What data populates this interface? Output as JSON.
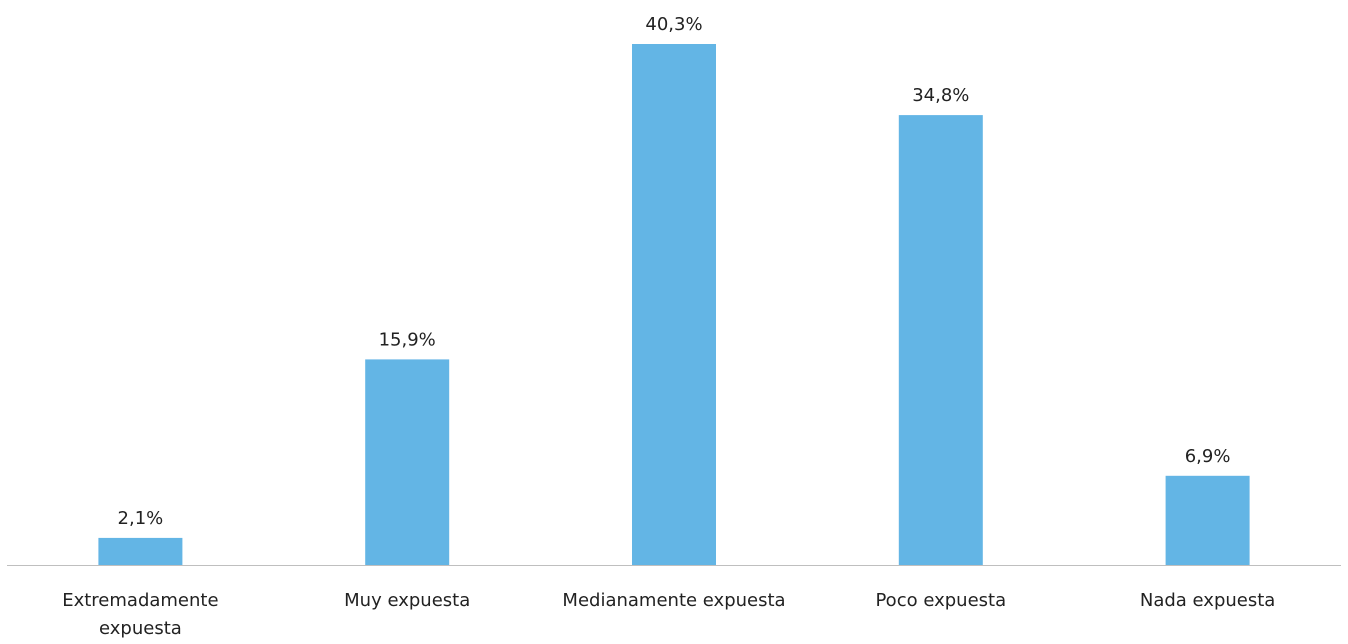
{
  "chart_data": {
    "type": "bar",
    "categories": [
      [
        "Extremadamente",
        "expuesta"
      ],
      [
        "Muy expuesta"
      ],
      [
        "Medianamente expuesta"
      ],
      [
        "Poco expuesta"
      ],
      [
        "Nada expuesta"
      ]
    ],
    "values": [
      2.1,
      15.9,
      40.3,
      34.8,
      6.9
    ],
    "value_labels": [
      "2,1%",
      "15,9%",
      "40,3%",
      "34,8%",
      "6,9%"
    ],
    "title": "",
    "xlabel": "",
    "ylabel": "",
    "ylim": [
      0,
      40.3
    ],
    "grid": false,
    "legend": "none",
    "bar_color": "#63B5E5",
    "axis_color": "#BFBFBF"
  }
}
